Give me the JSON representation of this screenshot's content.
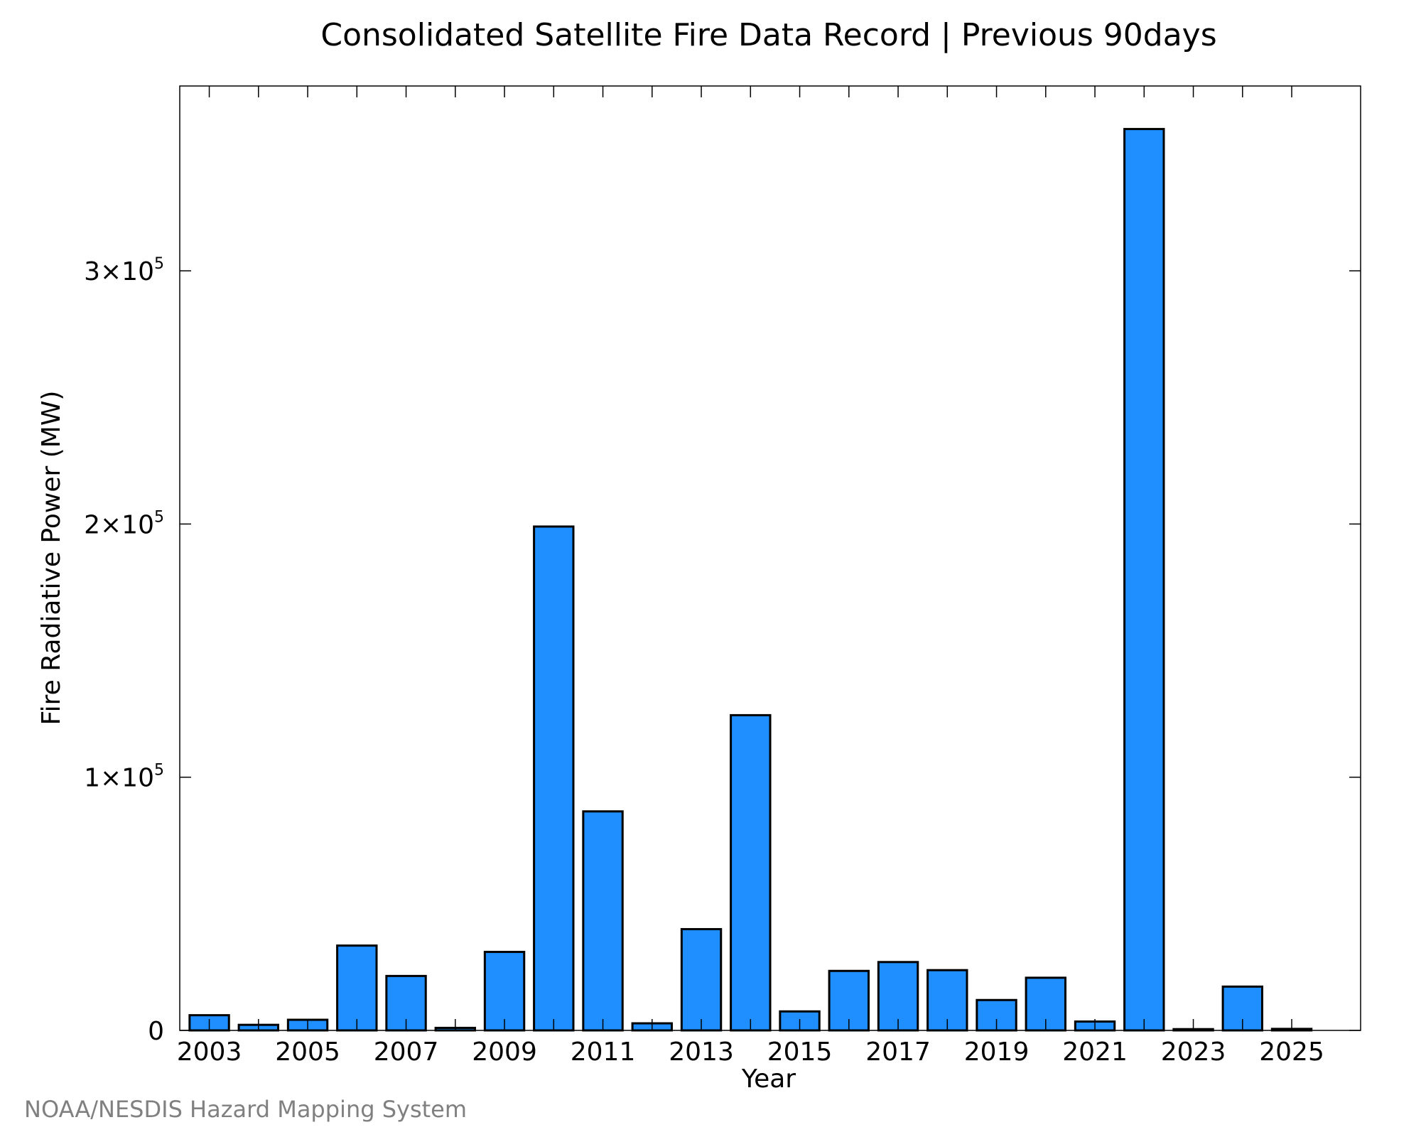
{
  "chart_data": {
    "type": "bar",
    "title": "Consolidated Satellite Fire Data Record | Previous 90days",
    "xlabel": "Year",
    "ylabel": "Fire Radiative Power (MW)",
    "categories": [
      "2003",
      "2004",
      "2005",
      "2006",
      "2007",
      "2008",
      "2009",
      "2010",
      "2011",
      "2012",
      "2013",
      "2014",
      "2015",
      "2016",
      "2017",
      "2018",
      "2019",
      "2020",
      "2021",
      "2022",
      "2023",
      "2024",
      "2025"
    ],
    "values": [
      6000,
      2200,
      4200,
      33500,
      21500,
      1000,
      31000,
      199000,
      86500,
      2800,
      40000,
      124500,
      7500,
      23500,
      27000,
      23800,
      12000,
      20800,
      3500,
      356000,
      500,
      17300,
      600
    ],
    "xticks": [
      "2003",
      "2005",
      "2007",
      "2009",
      "2011",
      "2013",
      "2015",
      "2017",
      "2019",
      "2021",
      "2023",
      "2025"
    ],
    "yticks": [
      {
        "value": 0,
        "mantissa": "0",
        "exponent": ""
      },
      {
        "value": 100000,
        "mantissa": "1×10",
        "exponent": "5"
      },
      {
        "value": 200000,
        "mantissa": "2×10",
        "exponent": "5"
      },
      {
        "value": 300000,
        "mantissa": "3×10",
        "exponent": "5"
      }
    ],
    "ylim": [
      0,
      373000
    ],
    "xlim": [
      2002.4,
      2026.4
    ],
    "bar_color": "#1f8fff",
    "bar_edge_color": "#000000",
    "grid": false,
    "legend": "none"
  },
  "credit": "NOAA/NESDIS Hazard Mapping System"
}
